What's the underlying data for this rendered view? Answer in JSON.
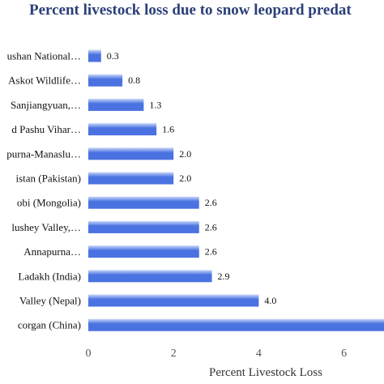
{
  "chart_data": {
    "type": "bar",
    "orientation": "horizontal",
    "title": "Percent livestock loss due to snow leopard predat",
    "xlabel": "Percent Livestock Loss",
    "ylabel": "",
    "categories": [
      "ushan National…",
      "Askot Wildlife…",
      "Sanjiangyuan,…",
      "d Pashu Vihar…",
      "purna-Manaslu…",
      "istan (Pakistan)",
      "obi (Mongolia)",
      "lushey Valley,…",
      "Annapurna…",
      "Ladakh (India)",
      "Valley (Nepal)",
      "corgan (China)"
    ],
    "values": [
      0.3,
      0.8,
      1.3,
      1.6,
      2.0,
      2.0,
      2.6,
      2.6,
      2.6,
      2.9,
      4.0,
      7.2
    ],
    "value_labels": [
      "0.3",
      "0.8",
      "1.3",
      "1.6",
      "2.0",
      "2.0",
      "2.6",
      "2.6",
      "2.6",
      "2.9",
      "4.0",
      ""
    ],
    "xticks": [
      "0",
      "2",
      "4",
      "6"
    ],
    "xlim": [
      0,
      7
    ],
    "grid": false,
    "legend": "none",
    "bar_color": "#4a72e0",
    "bar_highlight": "#c9d8fb"
  }
}
